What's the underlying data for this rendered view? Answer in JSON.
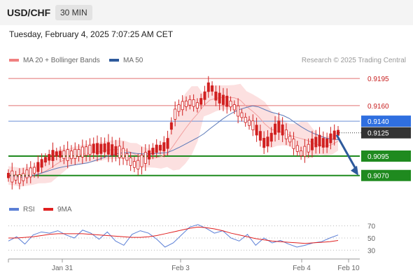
{
  "header": {
    "pair": "USD/CHF",
    "timeframe": "30 MIN"
  },
  "datetime": "Tuesday, February 4, 2025 7:07:25 AM CET",
  "legend": {
    "items": [
      {
        "label": "MA 20 + Bollinger Bands",
        "color": "#f08080"
      },
      {
        "label": "MA 50",
        "color": "#2e5a9c"
      }
    ],
    "credit": "Research © 2025 Trading Central"
  },
  "rsi_legend": {
    "items": [
      {
        "label": "RSI",
        "color": "#5b7fd6"
      },
      {
        "label": "9MA",
        "color": "#e02020"
      }
    ]
  },
  "colors": {
    "resistance": "#e07070",
    "pivot": "#6a8fd6",
    "support": "#1f8a1f",
    "candle": "#d12020",
    "bollinger": "#fbd5d5",
    "ma20": "#f1a0a0",
    "ma50": "#5a78b8",
    "arrow": "#2e5a9c",
    "last_price_box": "#333333"
  },
  "chart_data": {
    "type": "line",
    "price_range": [
      0.904,
      0.9205
    ],
    "levels": [
      {
        "kind": "resistance",
        "value": 0.9195,
        "label": "0.9195"
      },
      {
        "kind": "resistance",
        "value": 0.916,
        "label": "0.9160"
      },
      {
        "kind": "pivot",
        "value": 0.914,
        "label": "0.9140"
      },
      {
        "kind": "support",
        "value": 0.9095,
        "label": "0.9095"
      },
      {
        "kind": "support",
        "value": 0.907,
        "label": "0.9070"
      }
    ],
    "last_price": {
      "value": 0.9125,
      "label": "0.9125"
    },
    "x_ticks": [
      "Jan 31",
      "Feb 3",
      "Feb 4",
      "Feb 10"
    ],
    "price_series": [
      0.907,
      0.9068,
      0.9065,
      0.9072,
      0.9075,
      0.9082,
      0.909,
      0.9095,
      0.9098,
      0.9097,
      0.9096,
      0.9098,
      0.91,
      0.9102,
      0.9105,
      0.9104,
      0.9106,
      0.9103,
      0.9101,
      0.9098,
      0.9088,
      0.9082,
      0.909,
      0.9096,
      0.9104,
      0.9106,
      0.9108,
      0.9145,
      0.9158,
      0.9162,
      0.9165,
      0.916,
      0.917,
      0.9188,
      0.9172,
      0.9168,
      0.9165,
      0.9158,
      0.915,
      0.914,
      0.9135,
      0.9125,
      0.911,
      0.9118,
      0.9135,
      0.9128,
      0.9118,
      0.9108,
      0.9098,
      0.9104,
      0.9112,
      0.9115,
      0.911,
      0.912,
      0.9125
    ],
    "rsi": {
      "ticks": [
        70,
        50,
        30
      ],
      "range": [
        20,
        80
      ],
      "series": [
        {
          "name": "RSI",
          "values": [
            45,
            52,
            40,
            55,
            60,
            58,
            62,
            55,
            50,
            63,
            58,
            48,
            60,
            45,
            38,
            56,
            62,
            58,
            48,
            35,
            42,
            55,
            68,
            72,
            66,
            58,
            62,
            50,
            45,
            56,
            38,
            50,
            42,
            46,
            40,
            35,
            38,
            42,
            44,
            50,
            55
          ]
        },
        {
          "name": "9MA",
          "values": [
            50,
            50,
            51,
            52,
            54,
            56,
            57,
            57,
            57,
            57,
            56,
            55,
            54,
            53,
            52,
            51,
            51,
            52,
            54,
            57,
            60,
            63,
            66,
            68,
            67,
            65,
            62,
            58,
            55,
            52,
            49,
            47,
            45,
            44,
            43,
            42,
            41,
            42,
            43,
            44,
            46
          ]
        }
      ]
    }
  }
}
